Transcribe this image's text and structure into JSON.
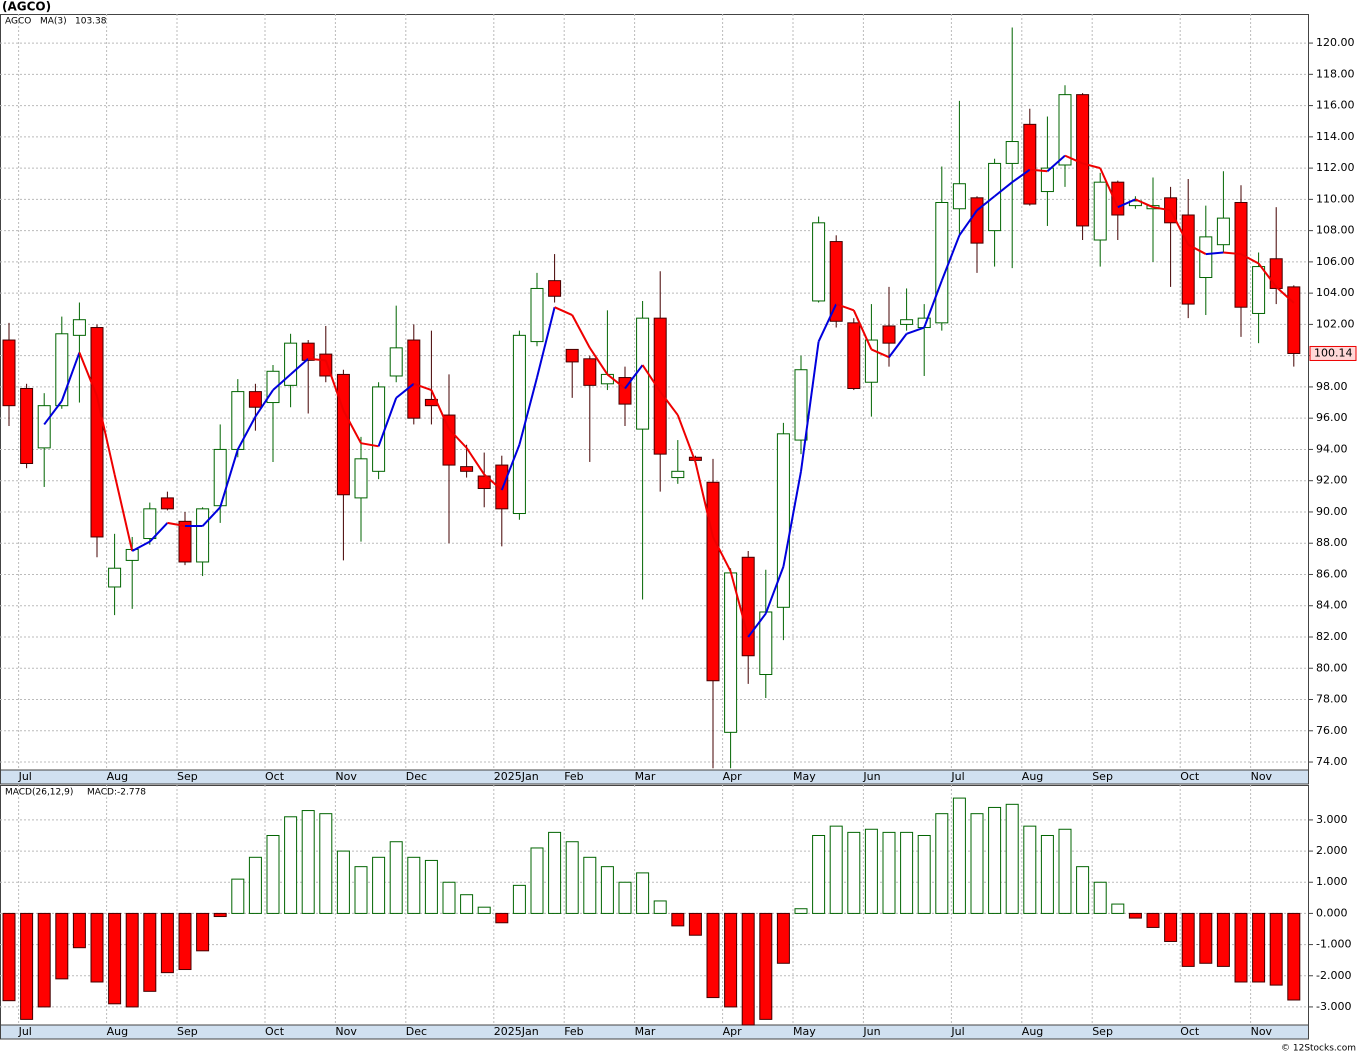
{
  "chart_data": [
    {
      "type": "candlestick",
      "title": "(AGCO)",
      "legend": "AGCO",
      "categories": [
        null,
        "Jul",
        null,
        null,
        null,
        null,
        "Aug",
        null,
        null,
        null,
        "Sep",
        null,
        null,
        null,
        null,
        "Oct",
        null,
        null,
        null,
        "Nov",
        null,
        null,
        null,
        "Dec",
        null,
        null,
        null,
        null,
        "2025Jan",
        null,
        null,
        null,
        "Feb",
        null,
        null,
        null,
        "Mar",
        null,
        null,
        null,
        null,
        "Apr",
        null,
        null,
        null,
        "May",
        null,
        null,
        null,
        "Jun",
        null,
        null,
        null,
        null,
        "Jul",
        null,
        null,
        null,
        "Aug",
        null,
        null,
        null,
        "Sep",
        null,
        null,
        null,
        null,
        "Oct",
        null,
        null,
        null,
        "Nov",
        null,
        null
      ],
      "open": [
        101.0,
        97.9,
        94.1,
        96.8,
        101.3,
        101.8,
        85.2,
        86.9,
        88.3,
        90.9,
        89.4,
        86.8,
        90.4,
        94.0,
        97.7,
        97.0,
        98.1,
        100.8,
        100.1,
        98.8,
        90.9,
        92.6,
        98.7,
        101.0,
        97.2,
        96.2,
        92.9,
        92.3,
        93.0,
        89.9,
        100.9,
        104.8,
        100.4,
        99.8,
        98.2,
        98.6,
        95.3,
        102.4,
        92.2,
        93.5,
        91.9,
        75.9,
        87.1,
        79.6,
        83.9,
        94.6,
        103.5,
        107.3,
        102.1,
        98.3,
        101.9,
        102.0,
        101.8,
        102.1,
        109.4,
        110.1,
        108.0,
        112.3,
        114.8,
        110.5,
        112.2,
        116.7,
        107.4,
        111.1,
        109.6,
        109.4,
        110.1,
        109.0,
        105.0,
        107.1,
        109.8,
        102.7,
        106.2,
        104.4
      ],
      "high": [
        102.1,
        98.2,
        97.6,
        102.5,
        103.4,
        102.0,
        88.6,
        88.4,
        90.6,
        91.3,
        90.0,
        90.3,
        95.6,
        98.5,
        98.2,
        99.4,
        101.4,
        101.0,
        101.9,
        99.1,
        94.8,
        98.3,
        103.2,
        102.0,
        101.6,
        98.8,
        94.3,
        93.8,
        93.6,
        101.6,
        105.3,
        106.5,
        100.4,
        100.0,
        102.9,
        99.3,
        103.5,
        105.4,
        94.6,
        93.6,
        93.4,
        86.4,
        87.5,
        86.3,
        95.7,
        100.0,
        108.9,
        107.7,
        102.4,
        103.3,
        104.4,
        104.3,
        103.3,
        112.1,
        116.3,
        110.2,
        112.6,
        121.0,
        115.8,
        115.3,
        117.3,
        116.8,
        111.7,
        111.2,
        110.2,
        111.4,
        110.8,
        111.3,
        109.6,
        111.8,
        110.9,
        106.6,
        109.5,
        104.5
      ],
      "low": [
        95.5,
        92.8,
        91.6,
        96.6,
        97.0,
        87.1,
        83.4,
        83.8,
        87.9,
        90.1,
        86.6,
        85.9,
        89.3,
        93.5,
        95.2,
        93.2,
        96.7,
        96.3,
        98.3,
        86.9,
        88.1,
        92.1,
        98.3,
        95.6,
        95.6,
        88.0,
        92.2,
        90.3,
        87.8,
        89.5,
        100.6,
        103.4,
        97.3,
        93.2,
        97.8,
        95.5,
        84.4,
        91.3,
        91.8,
        93.2,
        73.6,
        73.6,
        79.0,
        78.1,
        81.8,
        93.7,
        103.4,
        101.8,
        97.8,
        96.1,
        99.3,
        101.6,
        98.7,
        101.6,
        107.6,
        105.3,
        105.7,
        105.6,
        109.6,
        108.3,
        110.8,
        107.4,
        105.7,
        107.4,
        109.4,
        106.0,
        104.4,
        102.4,
        102.6,
        106.6,
        101.2,
        100.8,
        103.3,
        99.3
      ],
      "close": [
        96.8,
        93.1,
        96.8,
        101.4,
        102.3,
        88.4,
        86.4,
        87.6,
        90.2,
        90.2,
        86.8,
        90.2,
        94.0,
        97.7,
        96.7,
        99.0,
        100.8,
        99.7,
        98.7,
        91.1,
        93.4,
        98.0,
        100.5,
        96.0,
        96.8,
        93.0,
        92.6,
        91.5,
        90.2,
        101.3,
        104.3,
        103.8,
        99.6,
        98.1,
        98.8,
        96.9,
        102.4,
        93.7,
        92.6,
        93.3,
        79.2,
        86.1,
        80.8,
        83.6,
        95.0,
        99.1,
        108.5,
        102.2,
        97.9,
        101.0,
        100.8,
        102.3,
        102.4,
        109.8,
        111.0,
        107.2,
        112.3,
        113.7,
        109.7,
        112.0,
        116.7,
        108.3,
        111.1,
        109.0,
        109.9,
        109.6,
        108.5,
        103.3,
        107.6,
        108.8,
        103.1,
        105.7,
        104.3,
        100.14
      ],
      "last_label": "100.14",
      "up_color": "#006400",
      "down_color": "#ff0000",
      "overlay": {
        "name": "MA(3)",
        "value_label": "103.38",
        "up_color": "#0000dd",
        "down_color": "#ee0000",
        "values": [
          null,
          null,
          95.6,
          97.1,
          100.2,
          97.4,
          92.4,
          87.5,
          88.1,
          89.3,
          89.1,
          89.1,
          90.3,
          94.0,
          96.1,
          97.8,
          98.8,
          99.8,
          99.7,
          96.5,
          94.4,
          94.2,
          97.3,
          98.2,
          97.8,
          95.3,
          94.1,
          92.4,
          91.4,
          94.3,
          98.6,
          103.1,
          102.6,
          100.5,
          98.8,
          97.9,
          99.4,
          97.7,
          96.2,
          93.2,
          88.4,
          86.2,
          82.0,
          83.5,
          86.5,
          92.6,
          100.9,
          103.3,
          102.9,
          100.4,
          99.9,
          101.4,
          101.8,
          104.8,
          107.7,
          109.3,
          110.2,
          111.1,
          111.9,
          111.8,
          112.8,
          112.3,
          112.0,
          109.5,
          110.0,
          109.5,
          109.3,
          107.1,
          106.5,
          106.6,
          106.5,
          105.9,
          104.4,
          103.38
        ]
      },
      "ylim": [
        73.49,
        121.86
      ],
      "yticks": [
        {
          "value": 74,
          "label": "74.00"
        },
        {
          "value": 76,
          "label": "76.00"
        },
        {
          "value": 78,
          "label": "78.00"
        },
        {
          "value": 80,
          "label": "80.00"
        },
        {
          "value": 82,
          "label": "82.00"
        },
        {
          "value": 84,
          "label": "84.00"
        },
        {
          "value": 86,
          "label": "86.00"
        },
        {
          "value": 88,
          "label": "88.00"
        },
        {
          "value": 90,
          "label": "90.00"
        },
        {
          "value": 92,
          "label": "92.00"
        },
        {
          "value": 94,
          "label": "94.00"
        },
        {
          "value": 96,
          "label": "96.00"
        },
        {
          "value": 98,
          "label": "98.00"
        },
        {
          "value": 100,
          "label": "100.00"
        },
        {
          "value": 102,
          "label": "102.00"
        },
        {
          "value": 104,
          "label": "104.00"
        },
        {
          "value": 106,
          "label": "106.00"
        },
        {
          "value": 108,
          "label": "108.00"
        },
        {
          "value": 110,
          "label": "110.00"
        },
        {
          "value": 112,
          "label": "112.00"
        },
        {
          "value": 114,
          "label": "114.00"
        },
        {
          "value": 116,
          "label": "116.00"
        },
        {
          "value": 118,
          "label": "118.00"
        },
        {
          "value": 120,
          "label": "120.00"
        }
      ],
      "grid": true
    },
    {
      "type": "bar",
      "title": "MACD(26,12,9)",
      "legend": "MACD:-2.778",
      "categories": [
        null,
        "Jul",
        null,
        null,
        null,
        null,
        "Aug",
        null,
        null,
        null,
        "Sep",
        null,
        null,
        null,
        null,
        "Oct",
        null,
        null,
        null,
        "Nov",
        null,
        null,
        null,
        "Dec",
        null,
        null,
        null,
        null,
        "2025Jan",
        null,
        null,
        null,
        "Feb",
        null,
        null,
        null,
        "Mar",
        null,
        null,
        null,
        null,
        "Apr",
        null,
        null,
        null,
        "May",
        null,
        null,
        null,
        "Jun",
        null,
        null,
        null,
        null,
        "Jul",
        null,
        null,
        null,
        "Aug",
        null,
        null,
        null,
        "Sep",
        null,
        null,
        null,
        null,
        "Oct",
        null,
        null,
        null,
        "Nov",
        null,
        null
      ],
      "values": [
        -2.8,
        -3.4,
        -3.0,
        -2.1,
        -1.1,
        -2.2,
        -2.9,
        -3.0,
        -2.5,
        -1.9,
        -1.8,
        -1.2,
        -0.1,
        1.1,
        1.8,
        2.5,
        3.1,
        3.3,
        3.2,
        2.0,
        1.5,
        1.8,
        2.3,
        1.8,
        1.7,
        1.0,
        0.6,
        0.2,
        -0.3,
        0.9,
        2.1,
        2.6,
        2.3,
        1.8,
        1.5,
        1.0,
        1.3,
        0.4,
        -0.4,
        -0.7,
        -2.7,
        -3.0,
        -3.6,
        -3.4,
        -1.6,
        0.15,
        2.5,
        2.8,
        2.6,
        2.7,
        2.6,
        2.6,
        2.5,
        3.2,
        3.7,
        3.2,
        3.4,
        3.5,
        2.8,
        2.5,
        2.7,
        1.5,
        1.0,
        0.3,
        -0.15,
        -0.45,
        -0.9,
        -1.7,
        -1.6,
        -1.7,
        -2.2,
        -2.2,
        -2.3,
        -2.778
      ],
      "pos_color": "#006400",
      "neg_color": "#ff0000",
      "ylim": [
        -3.58,
        4.12
      ],
      "yticks": [
        {
          "value": -3,
          "label": "-3.000"
        },
        {
          "value": -2,
          "label": "-2.000"
        },
        {
          "value": -1,
          "label": "-1.000"
        },
        {
          "value": 0,
          "label": "0.000"
        },
        {
          "value": 1,
          "label": "1.000"
        },
        {
          "value": 2,
          "label": "2.000"
        },
        {
          "value": 3,
          "label": "3.000"
        }
      ],
      "grid": true
    }
  ],
  "footer": "© 12Stocks.com"
}
